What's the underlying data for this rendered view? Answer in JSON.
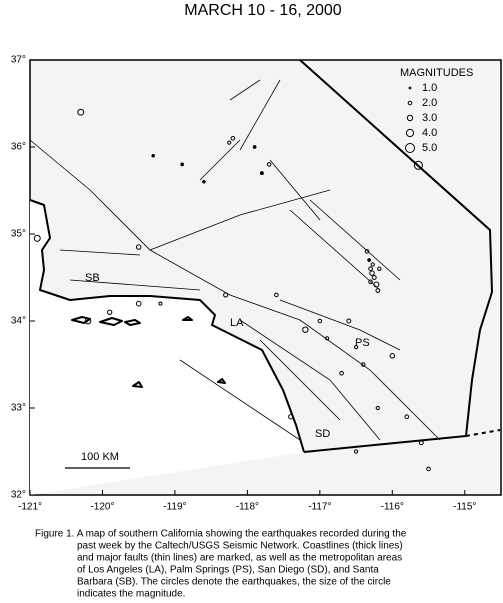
{
  "chart_data": {
    "type": "scatter",
    "title": "MARCH 10 - 16, 2000",
    "xlim": [
      -121,
      -114.5
    ],
    "ylim": [
      32,
      37
    ],
    "xticks": [
      {
        "value": -121,
        "label": "-121°"
      },
      {
        "value": -120,
        "label": "-120°"
      },
      {
        "value": -119,
        "label": "-119°"
      },
      {
        "value": -118,
        "label": "-118°"
      },
      {
        "value": -117,
        "label": "-117°"
      },
      {
        "value": -116,
        "label": "-116°"
      },
      {
        "value": -115,
        "label": "-115°"
      }
    ],
    "yticks": [
      {
        "value": 32,
        "label": "32°"
      },
      {
        "value": 33,
        "label": "33°"
      },
      {
        "value": 34,
        "label": "34°"
      },
      {
        "value": 35,
        "label": "35°"
      },
      {
        "value": 36,
        "label": "36°"
      },
      {
        "value": 37,
        "label": "37°"
      }
    ],
    "x": [
      -116.3,
      -116.28,
      -116.25,
      -116.3,
      -116.22,
      -116.27,
      -116.2,
      -116.32,
      -116.35,
      -116.18,
      -118.2,
      -118.25,
      -117.9,
      -118.6,
      -118.9,
      -119.3,
      -117.8,
      -117.7,
      -117.0,
      -117.2,
      -116.9,
      -116.6,
      -116.5,
      -116.4,
      -116.7,
      -116.0,
      -116.2,
      -115.8,
      -115.6,
      -117.6,
      -118.3,
      -119.2,
      -119.5,
      -119.9,
      -120.2,
      -119.5,
      -120.9,
      -120.3,
      -115.64,
      -117.4,
      -116.5,
      -115.5
    ],
    "y": [
      34.6,
      34.55,
      34.5,
      34.45,
      34.42,
      34.65,
      34.35,
      34.7,
      34.8,
      34.6,
      36.1,
      36.05,
      36.0,
      35.6,
      35.8,
      35.9,
      35.7,
      35.8,
      34.0,
      33.9,
      33.8,
      34.0,
      33.7,
      33.5,
      33.4,
      33.6,
      33.0,
      32.9,
      32.6,
      34.3,
      34.3,
      34.2,
      34.2,
      34.1,
      34.0,
      34.85,
      34.95,
      36.4,
      35.79,
      32.9,
      32.5,
      32.3
    ],
    "sizes": [
      2.0,
      2.5,
      2.2,
      2.0,
      2.8,
      1.8,
      2.1,
      1.5,
      2.0,
      1.9,
      2.0,
      1.8,
      1.5,
      1.4,
      1.5,
      1.4,
      1.6,
      2.0,
      2.0,
      3.0,
      1.8,
      2.2,
      1.8,
      1.9,
      2.0,
      2.5,
      1.8,
      2.0,
      2.2,
      2.0,
      2.3,
      1.7,
      2.6,
      2.4,
      3.2,
      2.5,
      3.3,
      3.3,
      4.5,
      2.5,
      1.8,
      2.0
    ],
    "legend": {
      "title": "MAGNITUDES",
      "sizes": [
        {
          "value": 1,
          "label": "1.0"
        },
        {
          "value": 2,
          "label": "2.0"
        },
        {
          "value": 3,
          "label": "3.0"
        },
        {
          "value": 4,
          "label": "4.0"
        },
        {
          "value": 5,
          "label": "5.0"
        }
      ]
    },
    "annotations": [
      "SB",
      "LA",
      "PS",
      "SD"
    ],
    "scale_bar_label": "100 KM"
  },
  "caption": [
    "Figure 1. A map of southern California showing the earthquakes recorded during the",
    "past week by the Caltech/USGS Seismic Network.  Coastlines (thick lines)",
    "and major faults (thin lines) are marked, as well as the metropolitan areas",
    "of Los Angeles (LA), Palm Springs (PS), San Diego (SD), and Santa",
    "Barbara (SB).  The circles denote the earthquakes, the size of the circle",
    "indicates the magnitude."
  ]
}
